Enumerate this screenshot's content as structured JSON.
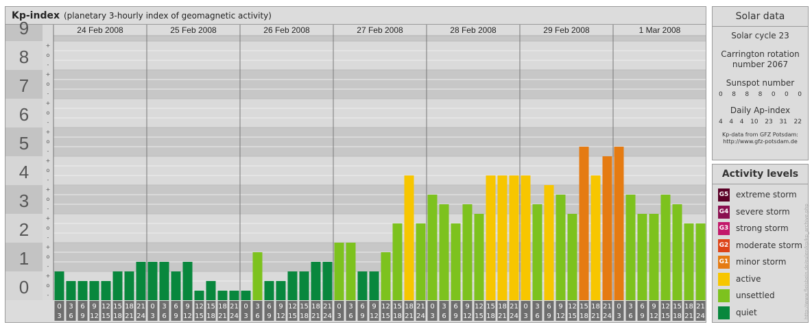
{
  "title": {
    "main": "Kp-index",
    "sub": "(planetary 3-hourly index of geomagnetic activity)"
  },
  "chart_data": {
    "type": "bar",
    "title": "Kp-index",
    "subtitle": "(planetary 3-hourly index of geomagnetic activity)",
    "ylim": [
      0,
      9
    ],
    "y_ticks": [
      "0",
      "1",
      "2",
      "3",
      "4",
      "5",
      "6",
      "7",
      "8",
      "9"
    ],
    "minor_marks": [
      "-",
      "o",
      "+"
    ],
    "days": [
      "24 Feb 2008",
      "25 Feb 2008",
      "26 Feb 2008",
      "27 Feb 2008",
      "28 Feb 2008",
      "29 Feb 2008",
      "1 Mar 2008"
    ],
    "slot_start": [
      "0",
      "3",
      "6",
      "9",
      "12",
      "15",
      "18",
      "21"
    ],
    "slot_end": [
      "3",
      "6",
      "9",
      "12",
      "15",
      "18",
      "21",
      "24"
    ],
    "values": [
      1.0,
      0.667,
      0.667,
      0.667,
      0.667,
      1.0,
      1.0,
      1.333,
      1.333,
      1.333,
      1.0,
      1.333,
      0.333,
      0.667,
      0.333,
      0.333,
      0.333,
      1.667,
      0.667,
      0.667,
      1.0,
      1.0,
      1.333,
      1.333,
      2.0,
      2.0,
      1.0,
      1.0,
      1.667,
      2.667,
      4.333,
      2.667,
      3.667,
      3.333,
      2.667,
      3.333,
      3.0,
      4.333,
      4.333,
      4.333,
      4.333,
      3.333,
      4.0,
      3.667,
      3.0,
      5.333,
      4.333,
      5.0,
      5.333,
      3.667,
      3.0,
      3.0,
      3.667,
      3.333,
      2.667,
      2.667
    ],
    "levels": [
      {
        "code": "G5",
        "label": "extreme storm",
        "color": "#5a0026"
      },
      {
        "code": "G4",
        "label": "severe storm",
        "color": "#8a1050"
      },
      {
        "code": "G3",
        "label": "strong storm",
        "color": "#c2186a"
      },
      {
        "code": "G2",
        "label": "moderate storm",
        "color": "#dd4418"
      },
      {
        "code": "G1",
        "label": "minor storm",
        "color": "#e57b12"
      },
      {
        "code": "",
        "label": "active",
        "color": "#f7c600"
      },
      {
        "code": "",
        "label": "unsettled",
        "color": "#7dc21e"
      },
      {
        "code": "",
        "label": "quiet",
        "color": "#08873d"
      }
    ]
  },
  "solar": {
    "title": "Solar data",
    "cycle": "Solar cycle 23",
    "carrington_1": "Carrington rotation",
    "carrington_2": "number 2067",
    "sunspot_title": "Sunspot number",
    "sunspot_values": [
      "0",
      "8",
      "8",
      "8",
      "0",
      "0",
      "0"
    ],
    "ap_title": "Daily Ap-index",
    "ap_values": [
      "4",
      "4",
      "4",
      "10",
      "23",
      "31",
      "22"
    ],
    "source_1": "Kp-data from GFZ Potsdam:",
    "source_2": "http://www.gfz-potsdam.de"
  },
  "activity": {
    "title": "Activity levels"
  },
  "credit": "http://www.fleisbein.de/eulen/kp/kp_archive.php"
}
